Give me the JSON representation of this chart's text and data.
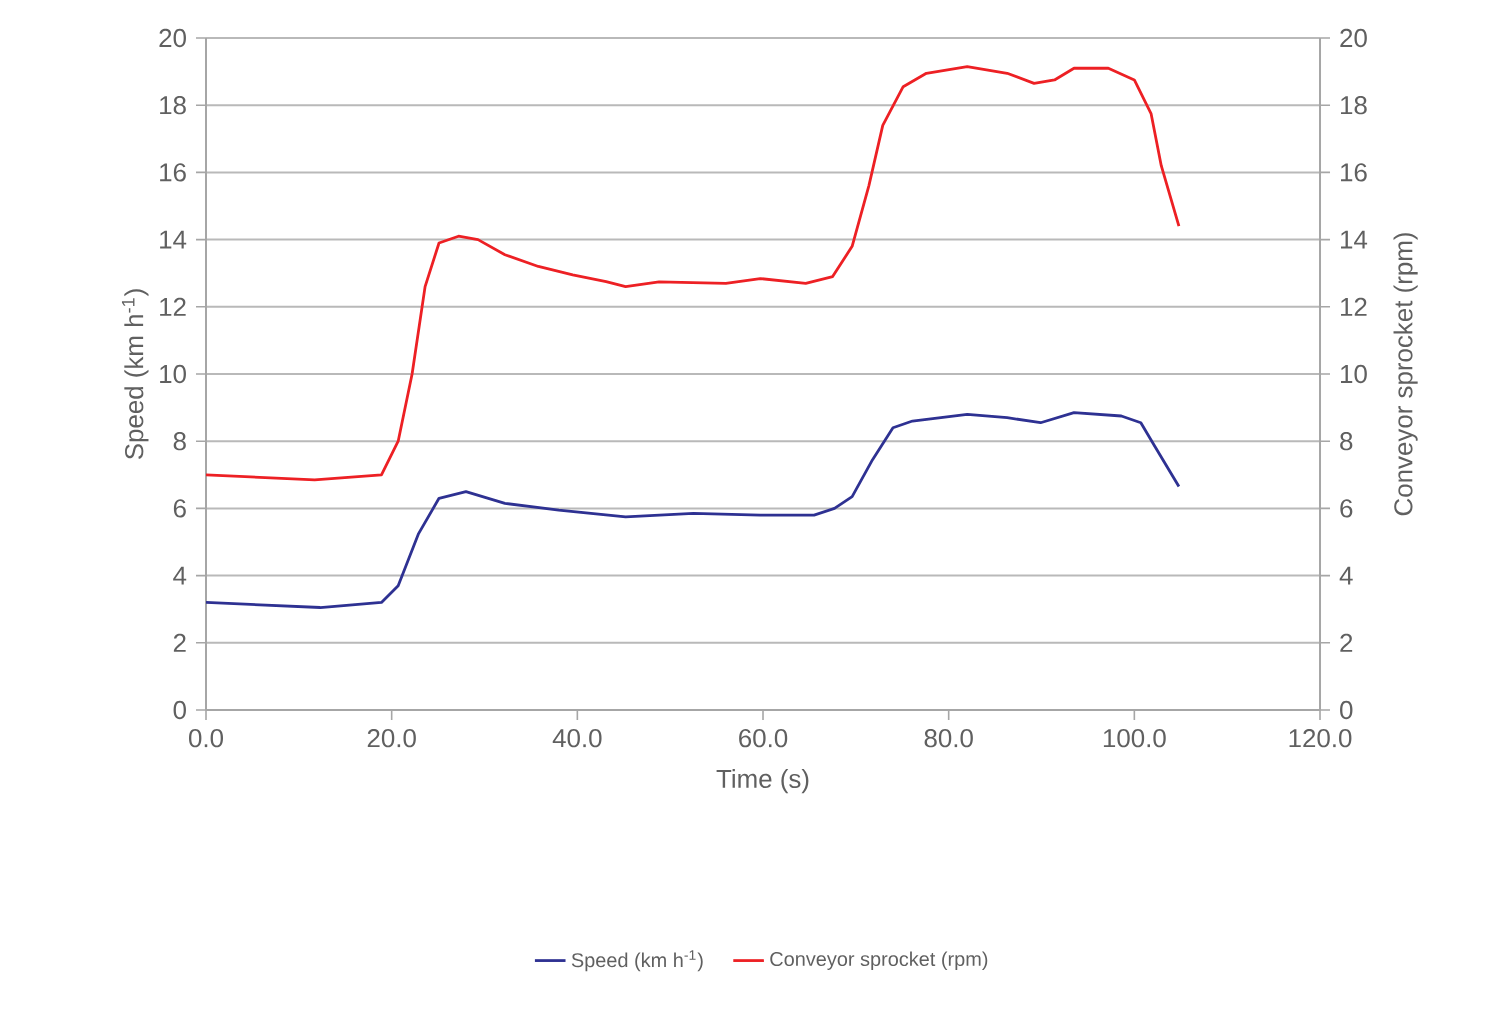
{
  "chart_data": {
    "type": "line",
    "xlabel": "Time (s)",
    "ylabel": "Speed (km h$^{-1}$)",
    "y2label": "Conveyor sprocket (rpm)",
    "xlim": [
      0,
      120
    ],
    "xticks": [
      {
        "value": 0,
        "label": "0.0"
      },
      {
        "value": 20,
        "label": "20.0"
      },
      {
        "value": 40,
        "label": "40.0"
      },
      {
        "value": 60,
        "label": "60.0"
      },
      {
        "value": 80,
        "label": "80.0"
      },
      {
        "value": 100,
        "label": "100.0"
      },
      {
        "value": 120,
        "label": "120.0"
      }
    ],
    "ylim": [
      0,
      20
    ],
    "yticks": [
      0,
      2,
      4,
      6,
      8,
      10,
      12,
      14,
      16,
      18,
      20
    ],
    "y2lim": [
      0,
      20
    ],
    "y2ticks": [
      0,
      2,
      4,
      6,
      8,
      10,
      12,
      14,
      16,
      18,
      20
    ],
    "grid": "y",
    "legend": "bottom",
    "marker": "none",
    "line_style": "solid",
    "series": [
      {
        "name": "Speed (km h$^{-1}$)",
        "color": "#2e3192",
        "x": [
          0,
          12.3,
          18.9,
          20.7,
          22.9,
          25.1,
          28,
          32.2,
          38,
          45.2,
          52.5,
          59.7,
          65.5,
          67.7,
          69.6,
          71.8,
          74,
          76.1,
          82,
          86.3,
          89.9,
          93.5,
          98.6,
          100.7,
          102.2,
          104.8
        ],
        "values": [
          3.2,
          3.05,
          3.2,
          3.7,
          5.25,
          6.3,
          6.5,
          6.15,
          5.95,
          5.75,
          5.85,
          5.8,
          5.8,
          6.0,
          6.35,
          7.45,
          8.4,
          8.6,
          8.8,
          8.7,
          8.55,
          8.85,
          8.75,
          8.55,
          7.85,
          6.65
        ]
      },
      {
        "name": "Conveyor sprocket (rpm)",
        "color": "#ed2024",
        "axis": "y2",
        "x": [
          0,
          11.7,
          18.9,
          20.7,
          22.2,
          23.6,
          25.1,
          27.2,
          29.3,
          32.2,
          35.8,
          39.5,
          43.1,
          45.2,
          48.8,
          56,
          59.7,
          64.6,
          67.5,
          69.6,
          71.4,
          72.9,
          75.1,
          77.6,
          82,
          86.3,
          89.2,
          91.4,
          93.5,
          97.2,
          100,
          101.8,
          102.9,
          104.8
        ],
        "values": [
          7.0,
          6.85,
          7.0,
          8.0,
          10.0,
          12.6,
          13.9,
          14.1,
          14.0,
          13.55,
          13.2,
          12.95,
          12.75,
          12.6,
          12.74,
          12.7,
          12.84,
          12.7,
          12.9,
          13.8,
          15.6,
          17.4,
          18.55,
          18.95,
          19.15,
          18.95,
          18.65,
          18.75,
          19.1,
          19.1,
          18.75,
          17.75,
          16.2,
          14.4
        ]
      }
    ]
  }
}
